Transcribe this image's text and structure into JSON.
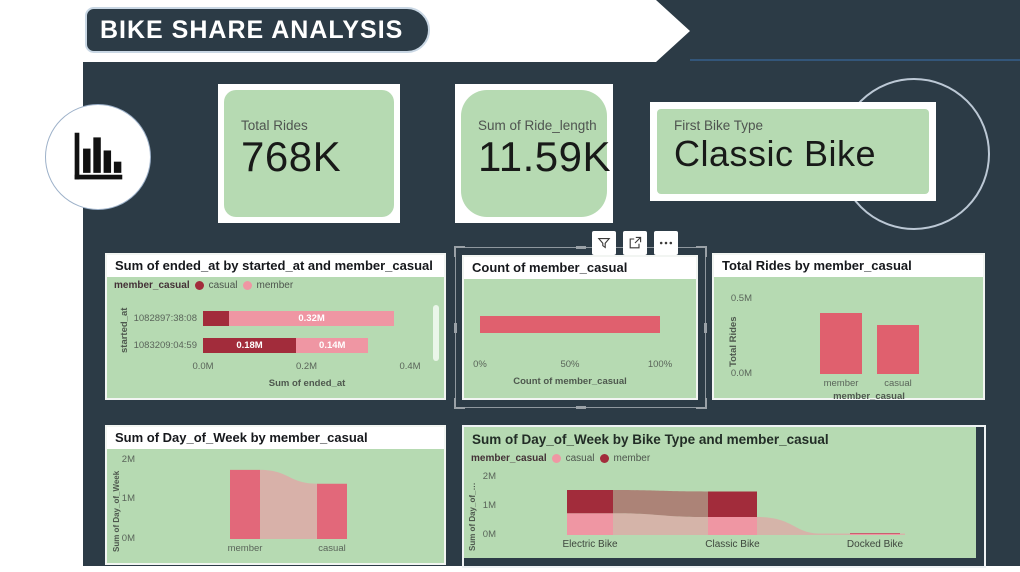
{
  "banner": {
    "title": "BIKE SHARE ANALYSIS"
  },
  "kpis": [
    {
      "label": "Total Rides",
      "value": "768K"
    },
    {
      "label": "Sum of Ride_length",
      "value": "11.59K"
    },
    {
      "label": "First Bike Type",
      "value": "Classic Bike"
    }
  ],
  "toolbar": {
    "buttons": [
      "filter",
      "focus-mode",
      "more-options"
    ]
  },
  "colors": {
    "panel": "#2c3b46",
    "green": "#b6dab2",
    "salmon": "#e0606e",
    "dark_red": "#a22c3b",
    "pink": "#ef96a3",
    "ribbon_col": "#e2687a",
    "accent_line": "#33567a"
  },
  "chart_data": [
    {
      "type": "bar",
      "orientation": "horizontal",
      "stacked": true,
      "title": "Sum of ended_at by started_at and member_casual",
      "legend_title": "member_casual",
      "legend": [
        {
          "label": "casual",
          "color": "#a22c3b"
        },
        {
          "label": "member",
          "color": "#ef96a3"
        }
      ],
      "categories": [
        "1082897:38:08",
        "1083209:04:59"
      ],
      "series": [
        {
          "name": "casual",
          "color": "#a22c3b",
          "values": [
            0.05,
            0.18
          ],
          "labels": [
            "",
            "0.18M"
          ]
        },
        {
          "name": "member",
          "color": "#ef96a3",
          "values": [
            0.32,
            0.14
          ],
          "labels": [
            "0.32M",
            "0.14M"
          ]
        }
      ],
      "xlabel": "Sum of ended_at",
      "ylabel": "started_at",
      "x_ticks": [
        "0.0M",
        "0.2M",
        "0.4M"
      ],
      "xlim": [
        0,
        0.4
      ]
    },
    {
      "type": "bar",
      "orientation": "horizontal",
      "title": "Count of member_casual",
      "values": [
        100
      ],
      "bar_color": "#e0606e",
      "xlabel": "Count of member_casual",
      "x_ticks": [
        "0%",
        "50%",
        "100%"
      ],
      "xlim": [
        0,
        100
      ]
    },
    {
      "type": "bar",
      "orientation": "vertical",
      "title": "Total Rides by member_casual",
      "categories": [
        "member",
        "casual"
      ],
      "values": [
        0.41,
        0.33
      ],
      "bar_color": "#e0606e",
      "xlabel": "member_casual",
      "ylabel": "Total Rides",
      "y_ticks": [
        "0.5M",
        "0.0M"
      ],
      "ylim": [
        0,
        0.55
      ]
    },
    {
      "type": "ribbon",
      "title": "Sum of Day_of_Week by member_casual",
      "categories": [
        "member",
        "casual"
      ],
      "values": [
        1.75,
        1.4
      ],
      "bar_color": "#e2687a",
      "ribbon_color": "#ef96a3",
      "ylabel": "Sum of Day_of_Week",
      "y_ticks": [
        "2M",
        "1M",
        "0M"
      ],
      "ylim": [
        0,
        2
      ]
    },
    {
      "type": "ribbon",
      "stacked": true,
      "title": "Sum of Day_of_Week by Bike Type and member_casual",
      "legend_title": "member_casual",
      "legend": [
        {
          "label": "casual",
          "color": "#ef96a3"
        },
        {
          "label": "member",
          "color": "#a22c3b"
        }
      ],
      "categories": [
        "Electric Bike",
        "Classic Bike",
        "Docked Bike"
      ],
      "series": [
        {
          "name": "casual",
          "color": "#ef96a3",
          "values": [
            0.75,
            0.62,
            0.05
          ]
        },
        {
          "name": "member",
          "color": "#a22c3b",
          "values": [
            0.8,
            0.88,
            0.02
          ]
        }
      ],
      "ylabel": "Sum of Day_of_…",
      "y_ticks": [
        "2M",
        "1M",
        "0M"
      ],
      "ylim": [
        0,
        2
      ]
    }
  ]
}
